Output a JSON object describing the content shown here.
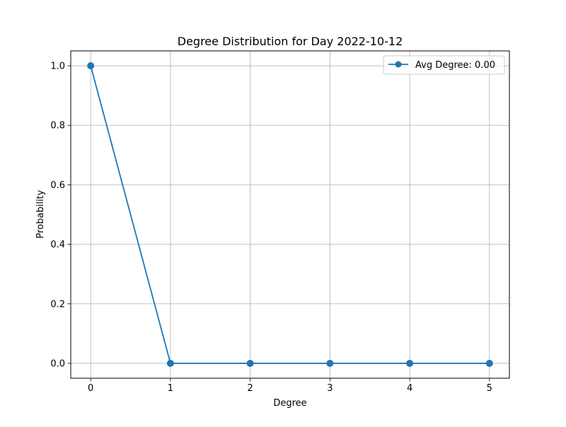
{
  "chart_data": {
    "type": "line",
    "title": "Degree Distribution for Day 2022-10-12",
    "xlabel": "Degree",
    "ylabel": "Probability",
    "x": [
      0,
      1,
      2,
      3,
      4,
      5
    ],
    "series": [
      {
        "name": "Avg Degree: 0.00",
        "values": [
          1.0,
          0.0,
          0.0,
          0.0,
          0.0,
          0.0
        ],
        "color": "#1f77b4",
        "marker": "circle"
      }
    ],
    "xlim": [
      -0.25,
      5.25
    ],
    "ylim": [
      -0.05,
      1.05
    ],
    "xticks": [
      "0",
      "1",
      "2",
      "3",
      "4",
      "5"
    ],
    "yticks": [
      "0.0",
      "0.2",
      "0.4",
      "0.6",
      "0.8",
      "1.0"
    ],
    "grid": true,
    "legend_position": "upper right"
  }
}
